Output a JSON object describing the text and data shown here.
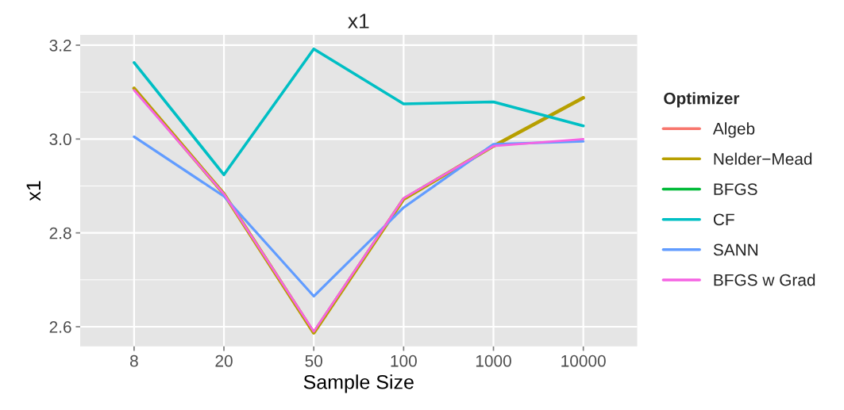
{
  "chart_data": {
    "type": "line",
    "title": "x1",
    "xlabel": "Sample Size",
    "ylabel": "x1",
    "legend_title": "Optimizer",
    "legend": "right",
    "grid": true,
    "categories": [
      "8",
      "20",
      "50",
      "100",
      "1000",
      "10000"
    ],
    "ylim": [
      2.558,
      3.222
    ],
    "yticks": [
      2.6,
      2.8,
      {
        "value": 3.0,
        "label": "3.0"
      },
      3.2
    ],
    "series": [
      {
        "name": "Algeb",
        "color": "#f8766d",
        "values": [
          null,
          null,
          null,
          null,
          null,
          null
        ]
      },
      {
        "name": "Nelder−Mead",
        "color": "#b79f00",
        "values": [
          3.108,
          2.883,
          2.587,
          2.872,
          2.985,
          3.088
        ]
      },
      {
        "name": "BFGS",
        "color": "#00ba38",
        "values": [
          null,
          null,
          null,
          null,
          null,
          null
        ]
      },
      {
        "name": "CF",
        "color": "#00bfc4",
        "values": [
          3.163,
          2.924,
          3.192,
          3.075,
          3.079,
          3.028
        ]
      },
      {
        "name": "SANN",
        "color": "#619cff",
        "values": [
          3.005,
          2.878,
          2.665,
          2.854,
          2.989,
          2.995
        ]
      },
      {
        "name": "BFGS w Grad",
        "color": "#f564e3",
        "values": [
          3.104,
          2.883,
          2.59,
          2.874,
          2.985,
          3.0
        ]
      }
    ]
  }
}
